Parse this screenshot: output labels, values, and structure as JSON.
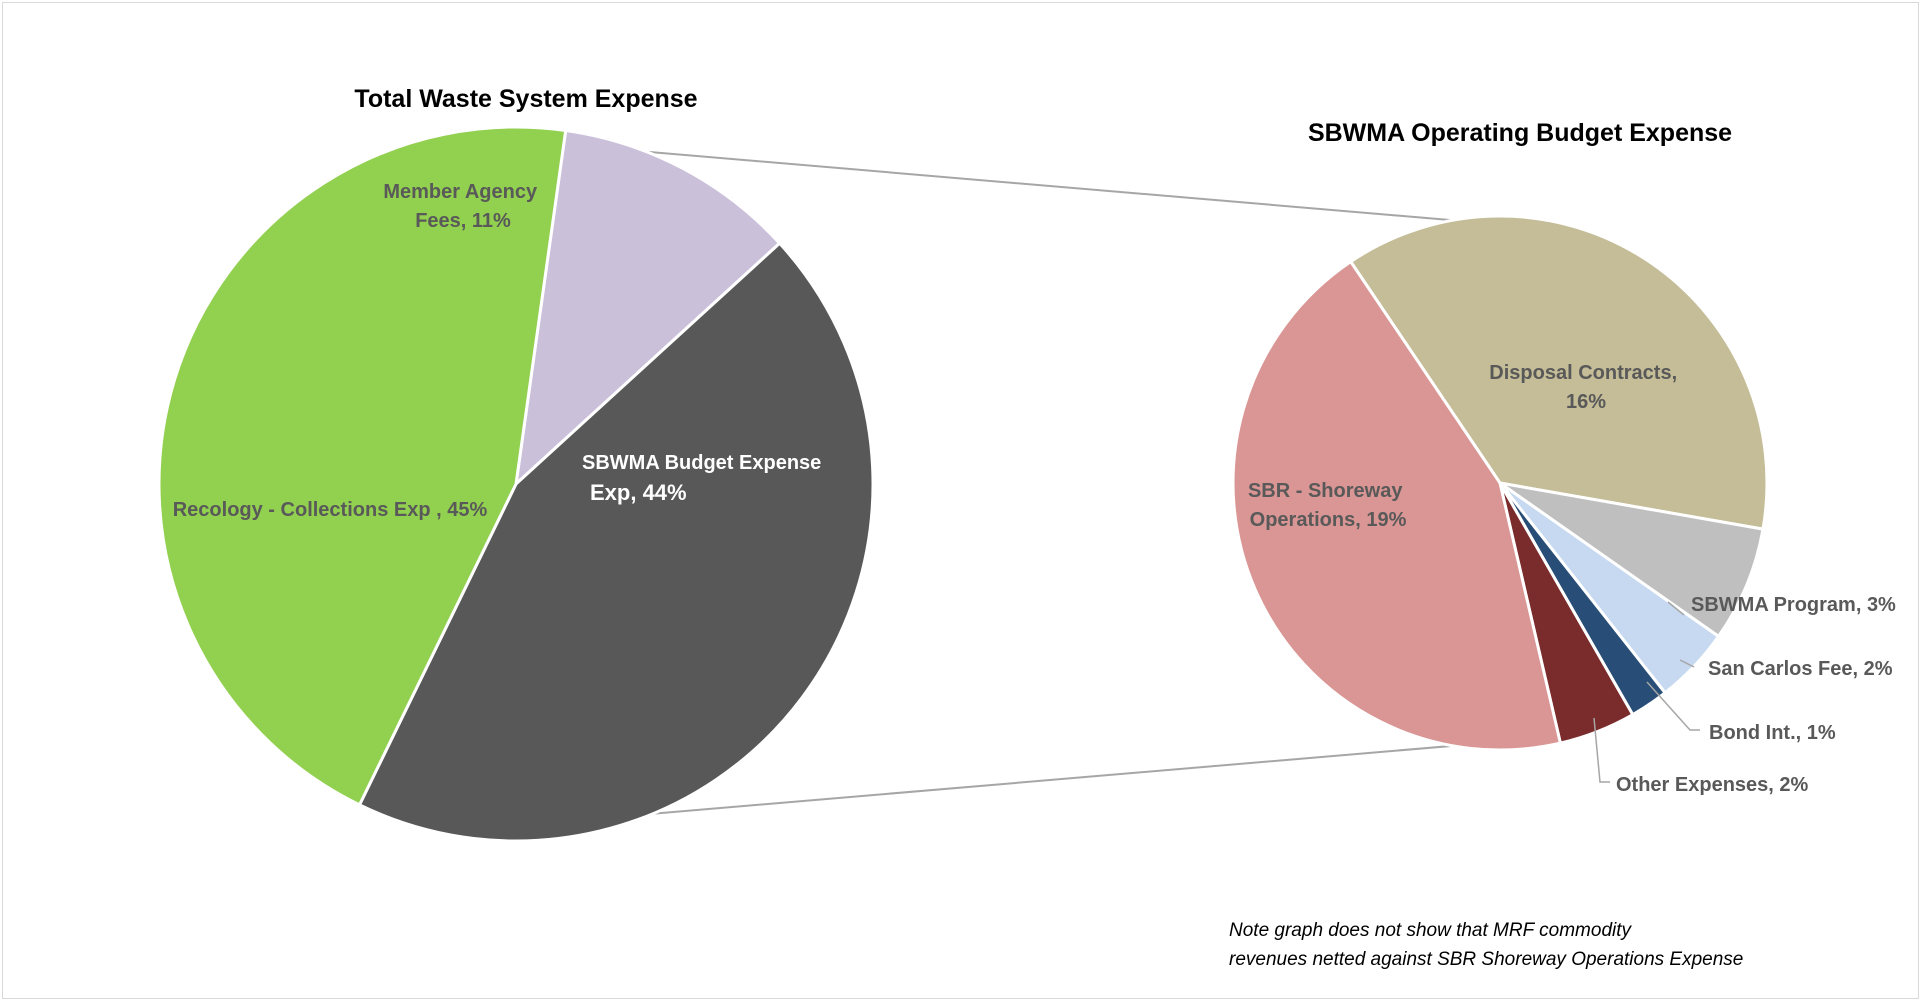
{
  "chart_data": [
    {
      "type": "pie",
      "title": "Total Waste System Expense",
      "slices": [
        {
          "label": "Member Agency Fees",
          "value": 11,
          "color": "#cbc0da"
        },
        {
          "label": "SBWMA Budget Expense Exp",
          "value": 44,
          "color": "#585858"
        },
        {
          "label": "Recology - Collections Exp",
          "value": 45,
          "color": "#92d050"
        }
      ],
      "data_labels": [
        {
          "lines": [
            "Member Agency",
            "Fees, 11%"
          ]
        },
        {
          "lines": [
            "SBWMA Budget Expense",
            "Exp, 44%"
          ]
        },
        {
          "lines": [
            "Recology - Collections Exp , 45%"
          ]
        }
      ]
    },
    {
      "type": "pie",
      "title": "SBWMA Operating Budget Expense",
      "slices": [
        {
          "label": "Disposal Contracts",
          "value": 16,
          "color": "#c4bd97"
        },
        {
          "label": "SBWMA Program",
          "value": 3,
          "color": "#bfbfbf"
        },
        {
          "label": "San Carlos Fee",
          "value": 2,
          "color": "#c6d9f1"
        },
        {
          "label": "Bond Int.",
          "value": 1,
          "color": "#284d76"
        },
        {
          "label": "Other Expenses",
          "value": 2,
          "color": "#7a2b2b"
        },
        {
          "label": "SBR - Shoreway Operations",
          "value": 19,
          "color": "#d99694"
        }
      ],
      "data_labels": [
        {
          "lines": [
            "Disposal Contracts,",
            "16%"
          ]
        },
        {
          "lines": [
            "SBWMA Program, 3%"
          ]
        },
        {
          "lines": [
            "San Carlos Fee, 2%"
          ]
        },
        {
          "lines": [
            "Bond Int., 1%"
          ]
        },
        {
          "lines": [
            "Other Expenses, 2%"
          ]
        },
        {
          "lines": [
            "SBR - Shoreway",
            "Operations, 19%"
          ]
        }
      ]
    }
  ],
  "note": {
    "line1": "Note graph does not show that MRF commodity",
    "line2": "revenues netted against SBR Shoreway Operations Expense"
  }
}
